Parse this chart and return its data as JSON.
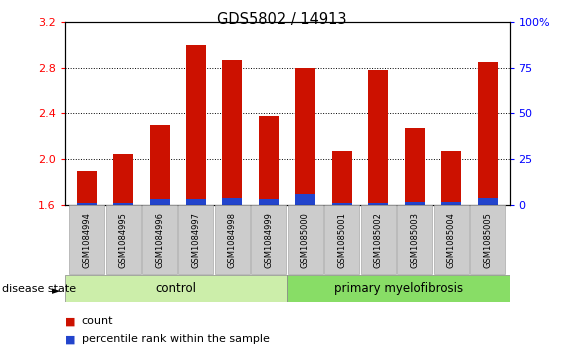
{
  "title": "GDS5802 / 14913",
  "samples": [
    "GSM1084994",
    "GSM1084995",
    "GSM1084996",
    "GSM1084997",
    "GSM1084998",
    "GSM1084999",
    "GSM1085000",
    "GSM1085001",
    "GSM1085002",
    "GSM1085003",
    "GSM1085004",
    "GSM1085005"
  ],
  "count_values": [
    1.9,
    2.05,
    2.3,
    3.0,
    2.87,
    2.38,
    2.8,
    2.07,
    2.78,
    2.27,
    2.07,
    2.85
  ],
  "percentile_values": [
    0.02,
    0.02,
    0.05,
    0.05,
    0.06,
    0.05,
    0.1,
    0.02,
    0.02,
    0.03,
    0.03,
    0.06
  ],
  "ymin": 1.6,
  "ymax": 3.2,
  "yticks": [
    1.6,
    2.0,
    2.4,
    2.8,
    3.2
  ],
  "right_yticks": [
    0,
    25,
    50,
    75,
    100
  ],
  "bar_color": "#cc1100",
  "blue_color": "#2244cc",
  "control_samples": 6,
  "control_label": "control",
  "disease_label": "primary myelofibrosis",
  "disease_state_label": "disease state",
  "legend_count": "count",
  "legend_pct": "percentile rank within the sample",
  "bar_width": 0.55,
  "control_bg": "#cceeaa",
  "disease_bg": "#88dd66",
  "tick_label_bg": "#cccccc",
  "plot_bg": "#ffffff"
}
